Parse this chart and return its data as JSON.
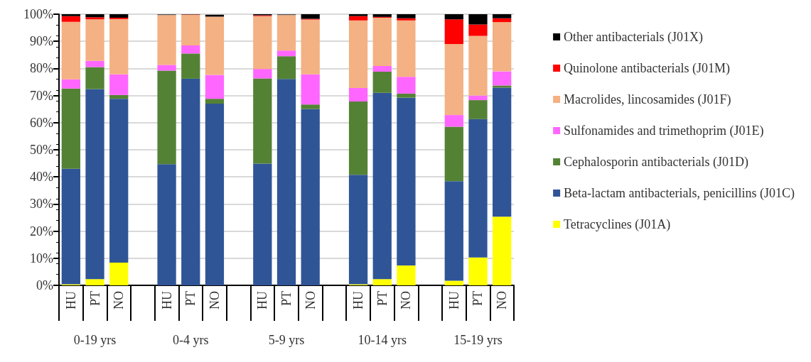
{
  "chart_data": {
    "type": "bar",
    "stacked": true,
    "categories": [
      "HU",
      "PT",
      "NO",
      null,
      "HU",
      "PT",
      "NO",
      null,
      "HU",
      "PT",
      "NO",
      null,
      "HU",
      "PT",
      "NO",
      null,
      "HU",
      "PT",
      "NO"
    ],
    "series": [
      {
        "name": "Tetracyclines (J01A)",
        "color": "#ffff00",
        "values": [
          0.4,
          2.3,
          8.4,
          null,
          0,
          0,
          0,
          null,
          0,
          0,
          0,
          null,
          0.4,
          2.3,
          7.3,
          null,
          1.7,
          10.3,
          25.3
        ]
      },
      {
        "name": "Beta-lactam antibacterials, penicillins (J01C)",
        "color": "#2f5597",
        "values": [
          42.6,
          70.1,
          60.4,
          null,
          44.7,
          76.2,
          67.0,
          null,
          44.9,
          76.1,
          65.0,
          null,
          40.4,
          68.7,
          61.9,
          null,
          36.7,
          51.0,
          47.6
        ]
      },
      {
        "name": "Cephalosporin antibacterials (J01D)",
        "color": "#548235",
        "values": [
          29.6,
          8.1,
          1.4,
          null,
          34.5,
          9.3,
          1.8,
          null,
          31.4,
          8.4,
          1.7,
          null,
          27.0,
          7.8,
          1.5,
          null,
          20.1,
          7.0,
          0.8
        ]
      },
      {
        "name": "Sulfonamides and trimethoprim (J01E)",
        "color": "#ff66ff",
        "values": [
          3.4,
          2.3,
          7.6,
          null,
          2.1,
          3.0,
          8.8,
          null,
          3.5,
          2.1,
          11.1,
          null,
          5.0,
          2.1,
          6.2,
          null,
          4.3,
          1.7,
          5.2
        ]
      },
      {
        "name": "Macrolides, lincosamides (J01F)",
        "color": "#f4b183",
        "values": [
          21.2,
          15.3,
          20.4,
          null,
          18.4,
          11.3,
          21.5,
          null,
          19.5,
          13.1,
          20.2,
          null,
          24.9,
          17.8,
          20.8,
          null,
          26.2,
          22.0,
          18.2
        ]
      },
      {
        "name": "Quinolone antibacterials (J01M)",
        "color": "#ff0000",
        "values": [
          2.1,
          0.8,
          0.5,
          null,
          null,
          0.1,
          null,
          null,
          0.3,
          null,
          0.3,
          null,
          1.6,
          0.3,
          0.8,
          null,
          9.1,
          4.2,
          1.4
        ]
      },
      {
        "name": "Other antibacterials (J01X)",
        "color": "#000000",
        "values": [
          0.7,
          1.1,
          1.3,
          null,
          0.2,
          0.1,
          0.7,
          null,
          0.4,
          0.2,
          1.7,
          null,
          0.7,
          1.0,
          1.5,
          null,
          1.9,
          3.8,
          1.5
        ]
      }
    ],
    "ylim": [
      0,
      100
    ],
    "yticks": [
      {
        "value": 0,
        "label": "0%"
      },
      {
        "value": 10,
        "label": "10%"
      },
      {
        "value": 20,
        "label": "20%"
      },
      {
        "value": 30,
        "label": "30%"
      },
      {
        "value": 40,
        "label": "40%"
      },
      {
        "value": 50,
        "label": "50%"
      },
      {
        "value": 60,
        "label": "60%"
      },
      {
        "value": 70,
        "label": "70%"
      },
      {
        "value": 80,
        "label": "80%"
      },
      {
        "value": 90,
        "label": "90%"
      },
      {
        "value": 100,
        "label": "100%"
      }
    ],
    "annotations": [
      "0-19 yrs",
      "0-4 yrs",
      "5-9 yrs",
      "10-14 yrs",
      "15-19 yrs"
    ],
    "grid": "y",
    "legend": "right"
  }
}
